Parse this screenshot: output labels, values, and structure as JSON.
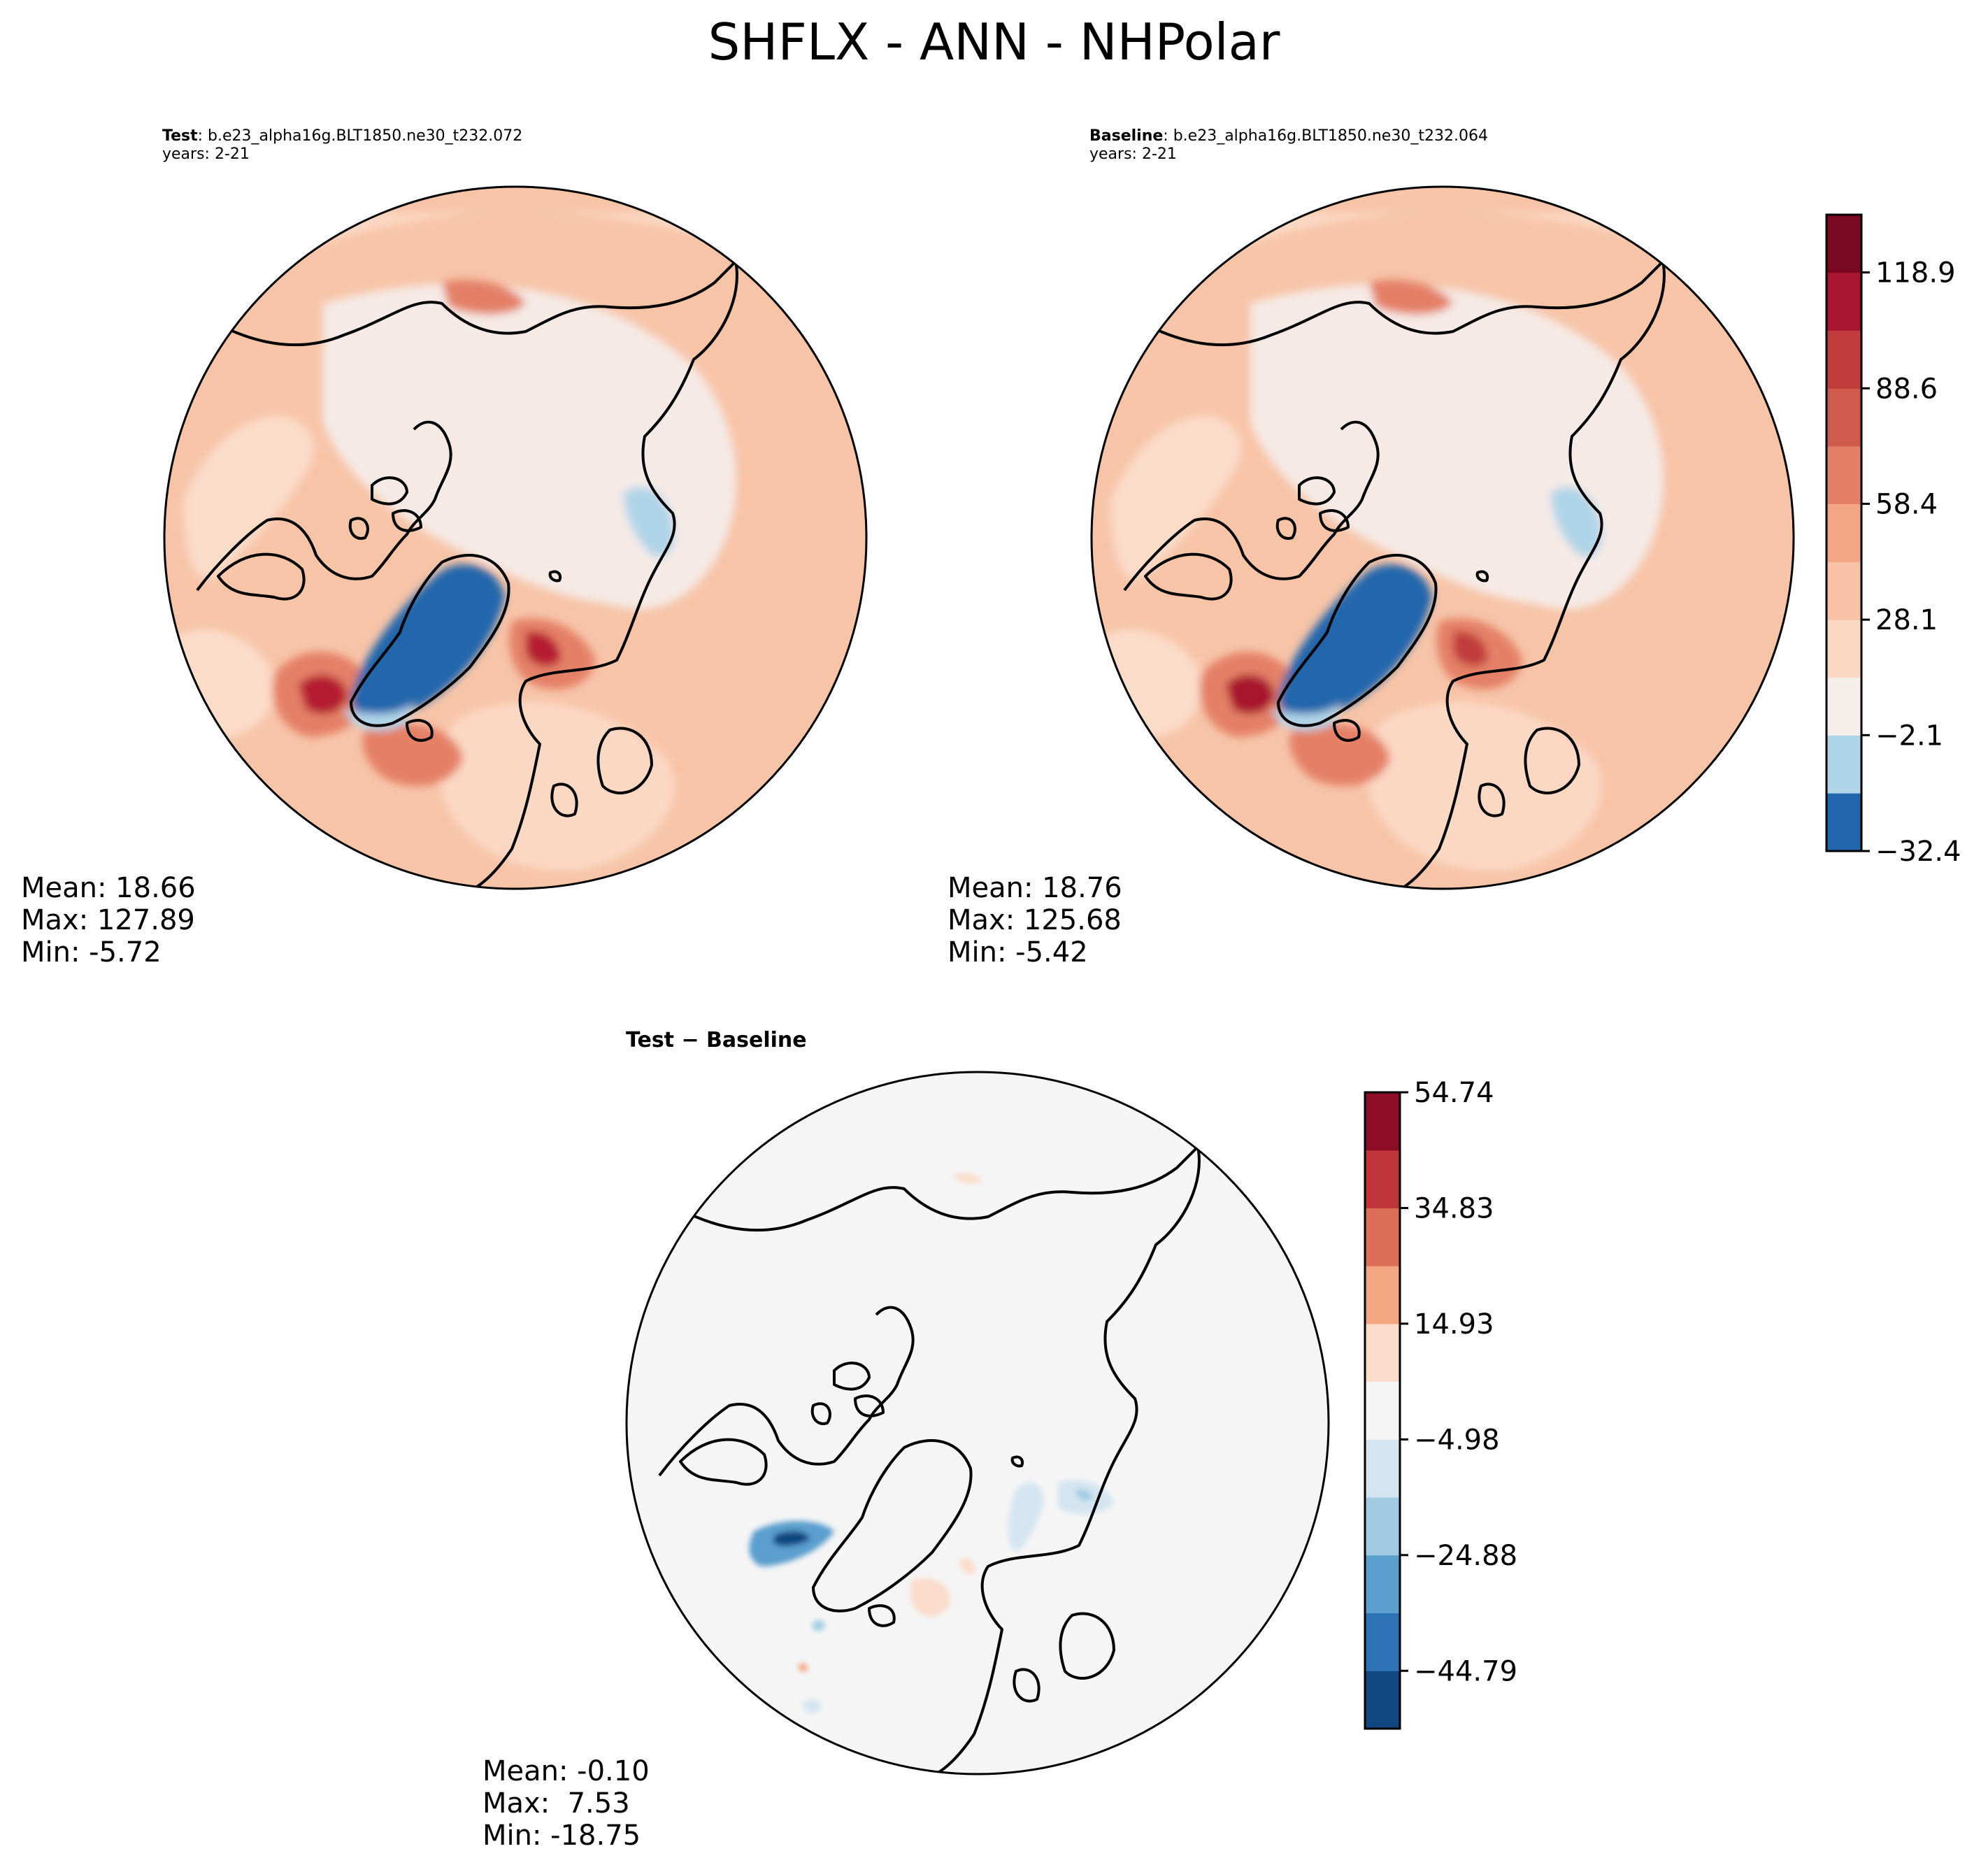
{
  "figure": {
    "title": "SHFLX - ANN - NHPolar"
  },
  "panels": {
    "test": {
      "label": "Test",
      "case": ": b.e23_alpha16g.BLT1850.ne30_t232.072",
      "years": "years: 2-21",
      "stats": {
        "mean": "Mean: 18.66",
        "max": "Max: 127.89",
        "min": "Min: -5.72"
      }
    },
    "baseline": {
      "label": "Baseline",
      "case": ": b.e23_alpha16g.BLT1850.ne30_t232.064",
      "years": "years: 2-21",
      "stats": {
        "mean": "Mean: 18.76",
        "max": "Max: 125.68",
        "min": "Min: -5.42"
      }
    },
    "diff": {
      "title": "Test − Baseline",
      "stats": {
        "mean": "Mean: -0.10",
        "max": "Max:  7.53",
        "min": "Min: -18.75"
      }
    }
  },
  "chart_data": [
    {
      "type": "heatmap",
      "projection": "north-polar-stereographic",
      "variable": "SHFLX",
      "season": "ANN",
      "region": "NHPolar",
      "panels": [
        "Test",
        "Baseline"
      ],
      "colormap": "RdBu_r",
      "colorbar": {
        "levels": [
          -32.4,
          -17.25,
          -2.1,
          13.0,
          28.1,
          43.25,
          58.4,
          73.5,
          88.6,
          103.75,
          118.9,
          134.0
        ],
        "tick_labels": [
          "−32.4",
          "−2.1",
          "28.1",
          "58.4",
          "88.6",
          "118.9"
        ],
        "tick_values": [
          -32.4,
          -2.1,
          28.1,
          58.4,
          88.6,
          118.9
        ],
        "colors": [
          "#2166ac",
          "#b0d4e8",
          "#f6eeea",
          "#fbd8c4",
          "#f8c0a4",
          "#f4a583",
          "#e48066",
          "#d05a4b",
          "#c13c3c",
          "#a8152e",
          "#7a0822"
        ]
      }
    },
    {
      "type": "heatmap",
      "projection": "north-polar-stereographic",
      "panels": [
        "Test − Baseline"
      ],
      "colormap": "RdBu_r",
      "colorbar": {
        "levels": [
          -54.74,
          -44.79,
          -34.83,
          -24.88,
          -14.93,
          -4.98,
          4.98,
          14.93,
          24.88,
          34.83,
          44.79,
          54.74
        ],
        "tick_labels": [
          "−44.79",
          "−24.88",
          "−4.98",
          "14.93",
          "34.83",
          "54.74"
        ],
        "tick_values": [
          -44.79,
          -24.88,
          -4.98,
          14.93,
          34.83,
          54.74
        ],
        "colors": [
          "#114780",
          "#2c72b4",
          "#5a9fce",
          "#a0cbe3",
          "#d4e5f1",
          "#f5f5f5",
          "#fbdbc9",
          "#f4a582",
          "#dd6f59",
          "#c0353a",
          "#8c0d25"
        ]
      }
    }
  ]
}
